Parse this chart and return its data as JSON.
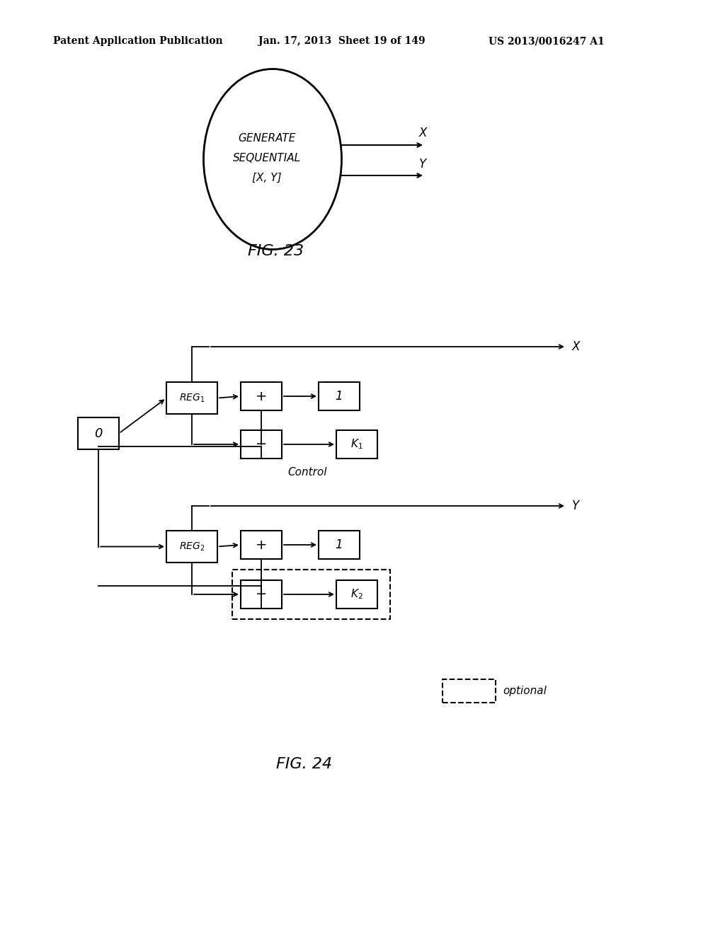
{
  "background_color": "#ffffff",
  "header_left": "Patent Application Publication",
  "header_mid": "Jan. 17, 2013  Sheet 19 of 149",
  "header_right": "US 2013/0016247 A1",
  "fig23_label": "FIG. 23",
  "fig24_label": "FIG. 24",
  "fig23_ellipse_text": [
    "GENERATE",
    "SEQUENTIAL",
    "[X, Y]"
  ],
  "fig24_optional_label": "optional",
  "fig24_control_label": "Control"
}
